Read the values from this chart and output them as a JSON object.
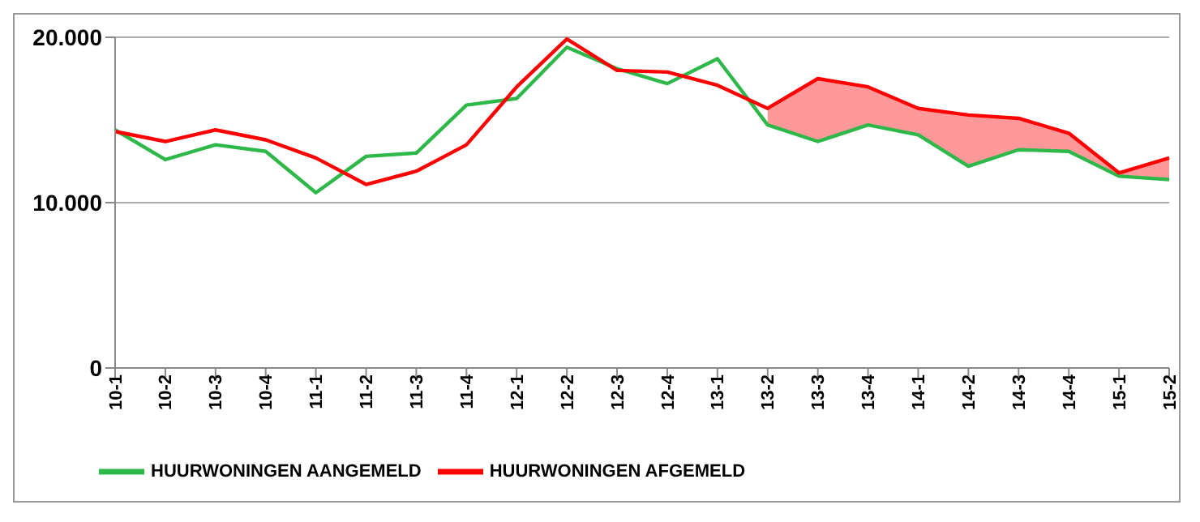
{
  "chart_data": {
    "type": "line",
    "categories": [
      "10-1",
      "10-2",
      "10-3",
      "10-4",
      "11-1",
      "11-2",
      "11-3",
      "11-4",
      "12-1",
      "12-2",
      "12-3",
      "12-4",
      "13-1",
      "13-2",
      "13-3",
      "13-4",
      "14-1",
      "14-2",
      "14-3",
      "14-4",
      "15-1",
      "15-2"
    ],
    "series": [
      {
        "name": "HUURWONINGEN AANGEMELD",
        "color": "#2eb84a",
        "values": [
          14400,
          12600,
          13500,
          13100,
          10600,
          12800,
          13000,
          15900,
          16300,
          19400,
          18100,
          17200,
          18700,
          14700,
          13700,
          14700,
          14100,
          12200,
          13200,
          13100,
          11600,
          11400
        ]
      },
      {
        "name": "HUURWONINGEN AFGEMELD",
        "color": "#ff0000",
        "values": [
          14300,
          13700,
          14400,
          13800,
          12700,
          11100,
          11900,
          13500,
          17000,
          19900,
          18000,
          17900,
          17100,
          15700,
          17500,
          17000,
          15700,
          15300,
          15100,
          14200,
          11800,
          12700
        ],
        "lower": [
          null,
          null,
          null,
          null,
          null,
          null,
          null,
          null,
          null,
          null,
          null,
          null,
          null,
          14700,
          13700,
          14700,
          14100,
          12200,
          13200,
          13100,
          11600,
          11400
        ],
        "upper": [
          null,
          null,
          null,
          null,
          null,
          null,
          null,
          null,
          null,
          null,
          null,
          null,
          null,
          15700,
          17500,
          17000,
          15700,
          15300,
          15100,
          14200,
          11800,
          12700
        ]
      }
    ],
    "ylim": [
      0,
      20000
    ],
    "yticks": [
      {
        "value": 0,
        "label": "0"
      },
      {
        "value": 10000,
        "label": "10.000"
      },
      {
        "value": 20000,
        "label": "20.000"
      }
    ],
    "grid": "y",
    "legend": "bottom left",
    "marker": "none",
    "line_style": "solid"
  }
}
